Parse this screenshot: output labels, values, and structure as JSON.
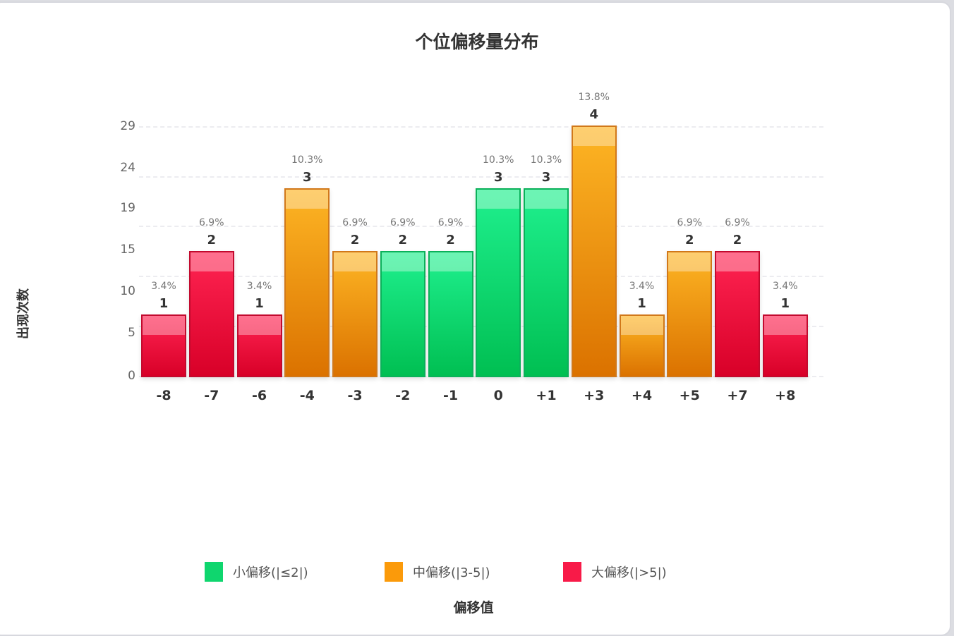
{
  "chart_data": {
    "type": "bar",
    "title": "个位偏移量分布",
    "xlabel": "偏移值",
    "ylabel": "出现次数",
    "categories": [
      "-8",
      "-7",
      "-6",
      "-4",
      "-3",
      "-2",
      "-1",
      "0",
      "+1",
      "+3",
      "+4",
      "+5",
      "+7",
      "+8"
    ],
    "values": [
      1,
      2,
      1,
      3,
      2,
      2,
      2,
      3,
      3,
      4,
      1,
      2,
      2,
      1
    ],
    "percent_labels": [
      "3.4%",
      "6.9%",
      "3.4%",
      "10.3%",
      "6.9%",
      "6.9%",
      "6.9%",
      "10.3%",
      "10.3%",
      "13.8%",
      "3.4%",
      "6.9%",
      "6.9%",
      "3.4%"
    ],
    "groups": [
      "large",
      "large",
      "large",
      "medium",
      "medium",
      "small",
      "small",
      "small",
      "small",
      "medium",
      "medium",
      "medium",
      "large",
      "large"
    ],
    "yticks": [
      "0",
      "5",
      "10",
      "15",
      "19",
      "24",
      "29"
    ],
    "grid": true,
    "legend_position": "bottom",
    "legend": [
      {
        "key": "small",
        "label": "小偏移(|≤2|)",
        "color": "#0fd66e"
      },
      {
        "key": "medium",
        "label": "中偏移(|3-5|)",
        "color": "#fb9a0a"
      },
      {
        "key": "large",
        "label": "大偏移(|>5|)",
        "color": "#f81a48"
      }
    ]
  },
  "colors": {
    "small": {
      "top": "#1ff08e",
      "bottom": "#00bf52",
      "border": "#0bb15a"
    },
    "medium": {
      "top": "#fdb524",
      "bottom": "#db7200",
      "border": "#d1781a"
    },
    "large": {
      "top": "#ff2452",
      "bottom": "#d80028",
      "border": "#c20a2e"
    }
  }
}
